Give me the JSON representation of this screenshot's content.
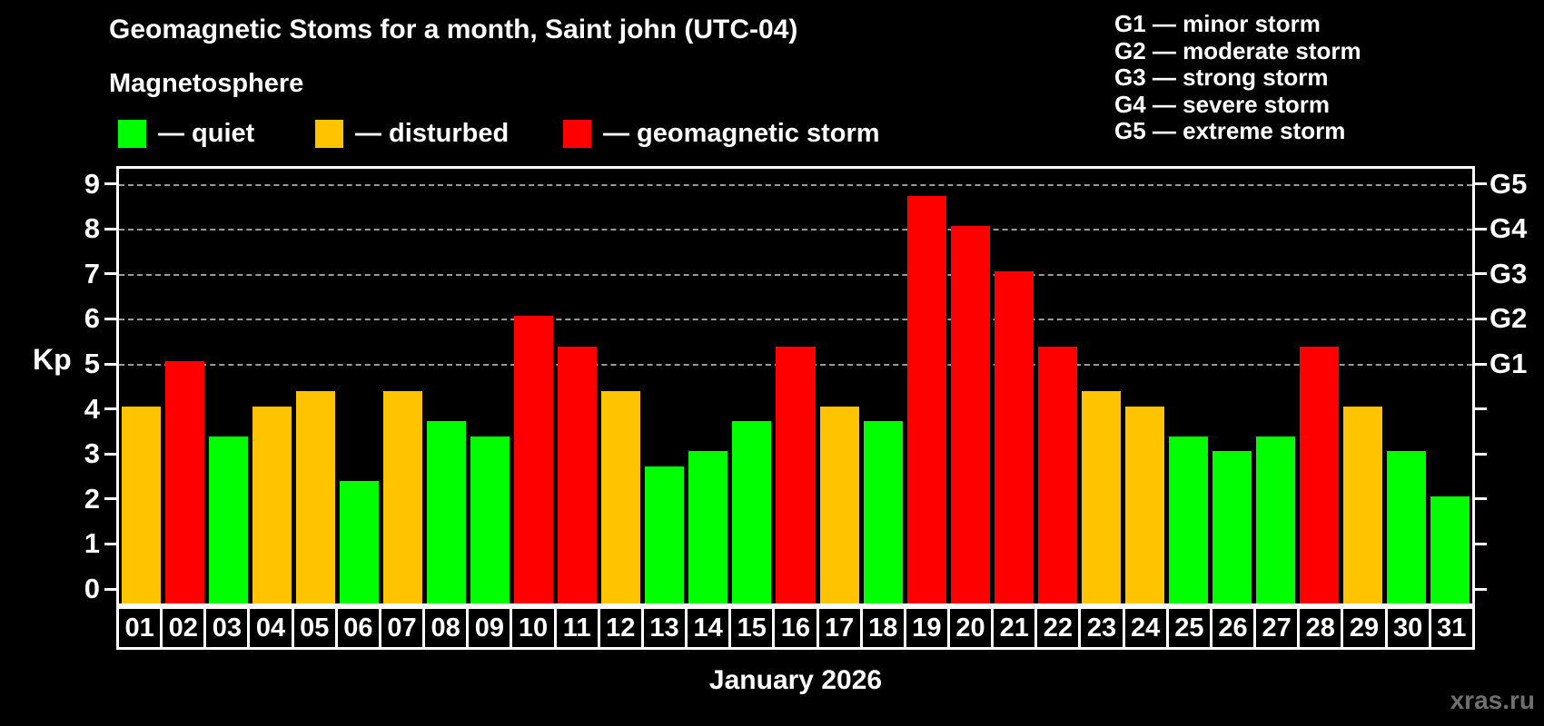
{
  "title": "Geomagnetic Stoms for a month, Saint john (UTC-04)",
  "subtitle": "Magnetosphere",
  "status_legend": [
    {
      "label": "— quiet",
      "status": "quiet",
      "color": "#00ff00"
    },
    {
      "label": "— disturbed",
      "status": "disturbed",
      "color": "#ffc300"
    },
    {
      "label": "— geomagnetic storm",
      "status": "storm",
      "color": "#ff0000"
    }
  ],
  "g_scale_legend": [
    {
      "code": "G1",
      "label": "— minor storm"
    },
    {
      "code": "G2",
      "label": "— moderate storm"
    },
    {
      "code": "G3",
      "label": "— strong storm"
    },
    {
      "code": "G4",
      "label": "— severe storm"
    },
    {
      "code": "G5",
      "label": "— extreme storm"
    }
  ],
  "chart_data": {
    "type": "bar",
    "title": "Geomagnetic Stoms for a month, Saint john (UTC-04)",
    "xlabel": "January 2026",
    "ylabel": "Kp",
    "ylim": [
      0,
      9
    ],
    "yticks": [
      0,
      1,
      2,
      3,
      4,
      5,
      6,
      7,
      8,
      9
    ],
    "gridlines_at": [
      5,
      6,
      7,
      8,
      9
    ],
    "grid": "dashed horizontal lines at G-storm thresholds only",
    "legend_position": "top",
    "categories": [
      "01",
      "02",
      "03",
      "04",
      "05",
      "06",
      "07",
      "08",
      "09",
      "10",
      "11",
      "12",
      "13",
      "14",
      "15",
      "16",
      "17",
      "18",
      "19",
      "20",
      "21",
      "22",
      "23",
      "24",
      "25",
      "26",
      "27",
      "28",
      "29",
      "30",
      "31"
    ],
    "values": [
      4,
      5,
      3.33,
      4,
      4.33,
      2.33,
      4.33,
      3.67,
      3.33,
      6,
      5.33,
      4.33,
      2.67,
      3,
      3.67,
      5.33,
      4,
      3.67,
      8.67,
      8,
      7,
      5.33,
      4.33,
      4,
      3.33,
      3,
      3.33,
      5.33,
      4,
      3,
      2
    ],
    "statuses": [
      "disturbed",
      "storm",
      "quiet",
      "disturbed",
      "disturbed",
      "quiet",
      "disturbed",
      "quiet",
      "quiet",
      "storm",
      "storm",
      "disturbed",
      "quiet",
      "quiet",
      "quiet",
      "storm",
      "disturbed",
      "quiet",
      "storm",
      "storm",
      "storm",
      "storm",
      "disturbed",
      "disturbed",
      "quiet",
      "quiet",
      "quiet",
      "storm",
      "disturbed",
      "quiet",
      "quiet"
    ],
    "right_axis": [
      {
        "kp": 5,
        "label": "G1"
      },
      {
        "kp": 6,
        "label": "G2"
      },
      {
        "kp": 7,
        "label": "G3"
      },
      {
        "kp": 8,
        "label": "G4"
      },
      {
        "kp": 9,
        "label": "G5"
      }
    ]
  },
  "watermark": "xras.ru",
  "colors": {
    "quiet": "#00ff00",
    "disturbed": "#ffc300",
    "storm": "#ff0000",
    "background": "#000000",
    "grid": "#9a9a9a",
    "axis": "#ffffff"
  }
}
